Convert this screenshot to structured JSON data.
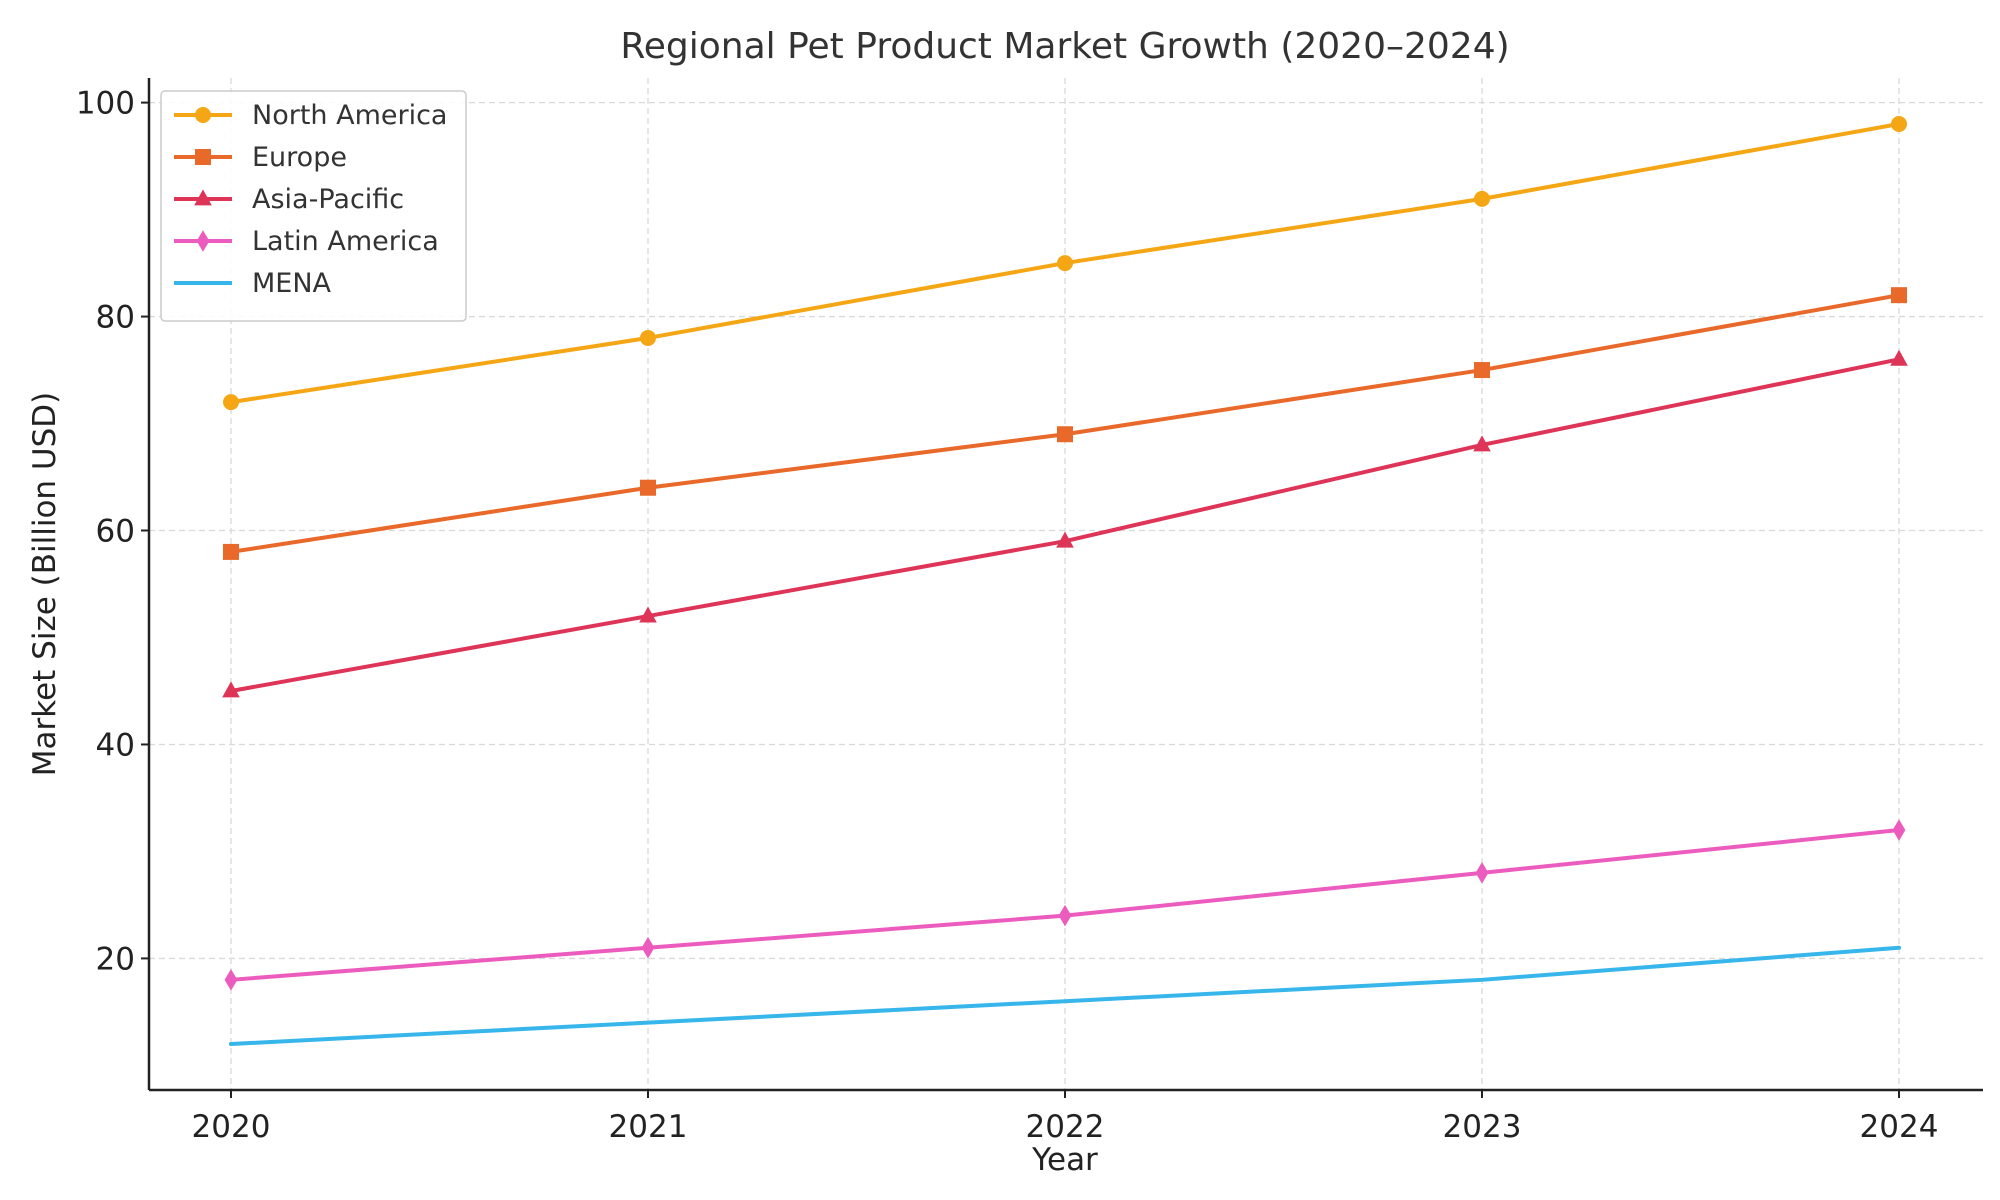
{
  "chart_data": {
    "type": "line",
    "title": "Regional Pet Product Market Growth (2020–2024)",
    "xlabel": "Year",
    "ylabel": "Market Size (Billion USD)",
    "x": [
      "2020",
      "2021",
      "2022",
      "2023",
      "2024"
    ],
    "yticks": [
      "20",
      "40",
      "60",
      "80",
      "100"
    ],
    "ylim": [
      7.7,
      102.3
    ],
    "grid": true,
    "legend_position": "top-left",
    "series": [
      {
        "name": "North America",
        "values": [
          72,
          78,
          85,
          91,
          98
        ],
        "color": "#F5A614",
        "marker": "circle"
      },
      {
        "name": "Europe",
        "values": [
          58,
          64,
          69,
          75,
          82
        ],
        "color": "#E8692A",
        "marker": "square"
      },
      {
        "name": "Asia-Pacific",
        "values": [
          45,
          52,
          59,
          68,
          76
        ],
        "color": "#DE3457",
        "marker": "triangle"
      },
      {
        "name": "Latin America",
        "values": [
          18,
          21,
          24,
          28,
          32
        ],
        "color": "#EC5CBE",
        "marker": "diamond"
      },
      {
        "name": "MENA",
        "values": [
          12,
          14,
          16,
          18,
          21
        ],
        "color": "#36B6EA",
        "marker": "none"
      }
    ]
  }
}
